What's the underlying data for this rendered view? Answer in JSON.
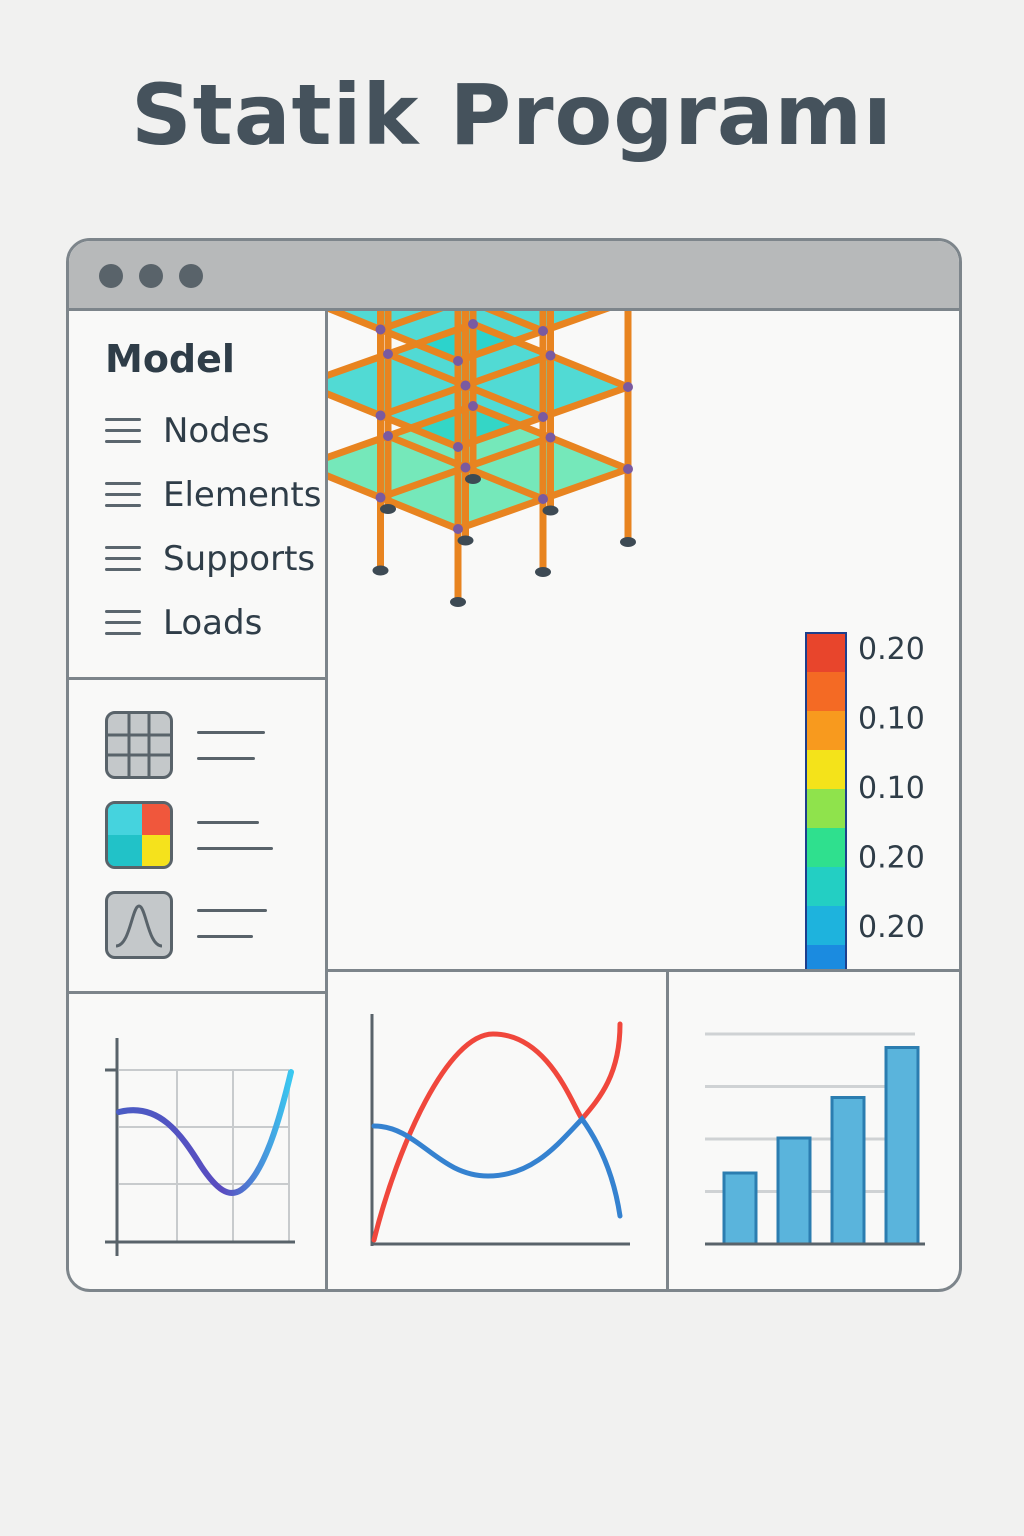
{
  "app": {
    "title": "Statik Programı"
  },
  "sidebar": {
    "heading": "Model",
    "items": [
      {
        "label": "Nodes",
        "icon": "list-icon"
      },
      {
        "label": "Elements",
        "icon": "list-icon"
      },
      {
        "label": "Supports",
        "icon": "list-icon"
      },
      {
        "label": "Loads",
        "icon": "list-icon"
      }
    ]
  },
  "tools": [
    {
      "icon": "grid-icon"
    },
    {
      "icon": "color-map-icon"
    },
    {
      "icon": "distribution-curve-icon"
    }
  ],
  "legend": {
    "labels": [
      "0.20",
      "0.10",
      "0.10",
      "0.20",
      "0.20",
      "0.20"
    ],
    "colors": [
      "#e8452c",
      "#f46a24",
      "#f89a1e",
      "#f4e31a",
      "#8fe34c",
      "#2fe08e",
      "#23cfc3",
      "#1eb3dd",
      "#1b8be0",
      "#1f5fe0"
    ]
  },
  "colors": {
    "frame": "#e88420",
    "slab": "#21d1c9",
    "node": "#7a5aa0",
    "red_series": "#f0473c",
    "blue_series": "#3582d0",
    "bar": "#5ab4dc"
  },
  "charts": [
    {
      "type": "line",
      "name": "mini-curve-chart"
    },
    {
      "type": "line",
      "name": "mini-two-line-chart"
    },
    {
      "type": "bar",
      "name": "mini-bar-chart",
      "values": [
        1.42,
        2.12,
        2.93,
        3.93
      ],
      "ylim": [
        0,
        4
      ]
    }
  ]
}
